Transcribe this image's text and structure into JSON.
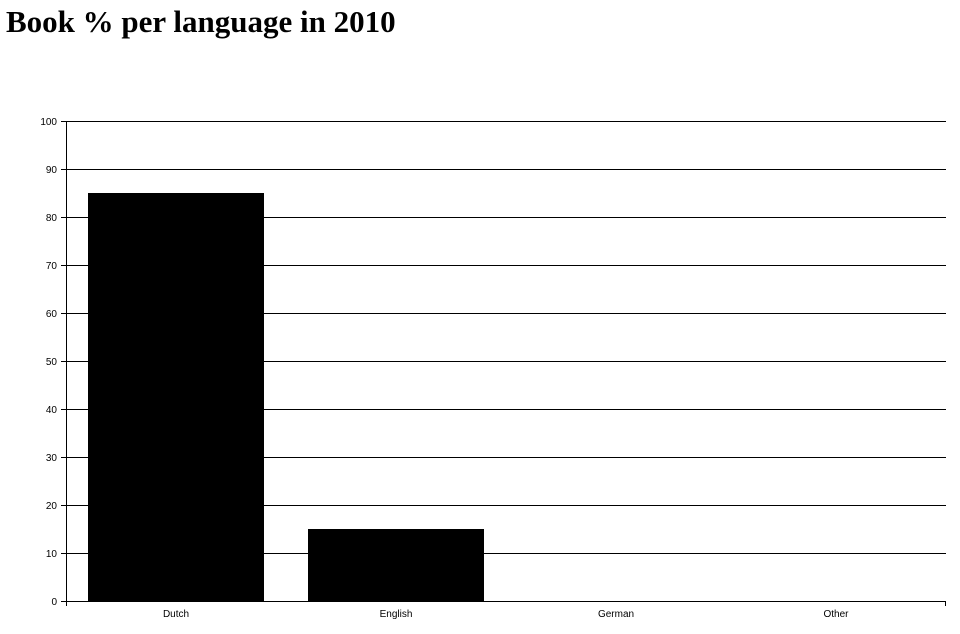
{
  "page": {
    "title": "Book % per language in 2010"
  },
  "chart_data": {
    "type": "bar",
    "title": "Book % per language in 2010",
    "categories": [
      "Dutch",
      "English",
      "German",
      "Other"
    ],
    "values": [
      85,
      15,
      0,
      0
    ],
    "xlabel": "",
    "ylabel": "",
    "ylim": [
      0,
      100
    ],
    "yticks": [
      0,
      10,
      20,
      30,
      40,
      50,
      60,
      70,
      80,
      90,
      100
    ],
    "grid": true,
    "legend": "none",
    "colors": {
      "bar": "#000000",
      "axis": "#000000",
      "grid": "#000000",
      "background": "#ffffff"
    }
  }
}
